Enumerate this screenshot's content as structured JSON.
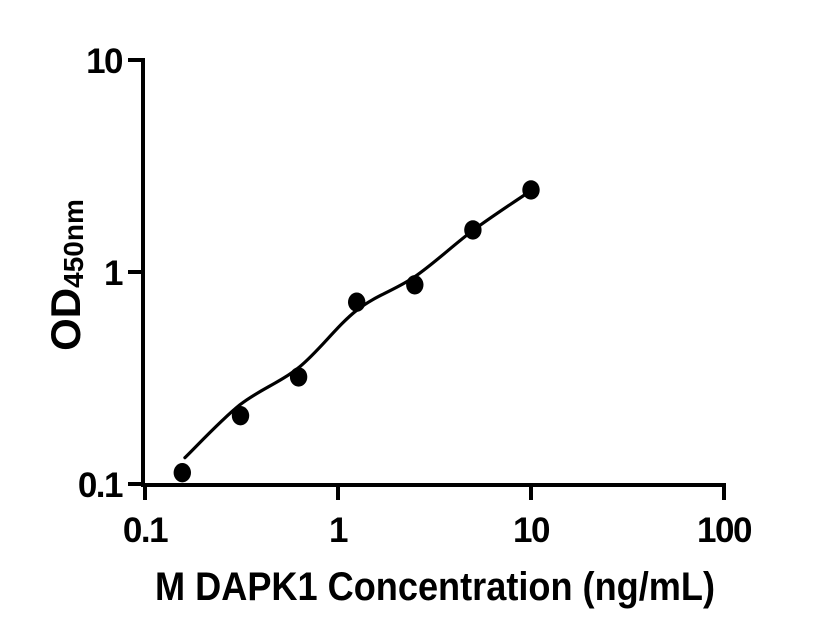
{
  "figure": {
    "background_color": "#ffffff",
    "ink_color": "#000000"
  },
  "chart_data": {
    "type": "scatter",
    "title": "",
    "xlabel": "M DAPK1 Concentration (ng/mL)",
    "ylabel": "OD450nm",
    "ylabel_main": "OD",
    "ylabel_sub": "450nm",
    "x_scale": "log10",
    "y_scale": "log10",
    "xlim": [
      0.1,
      100
    ],
    "ylim": [
      0.1,
      10
    ],
    "grid": false,
    "legend": "none",
    "x_ticks": [
      {
        "v": 0.1,
        "label": "0.1"
      },
      {
        "v": 1,
        "label": "1"
      },
      {
        "v": 10,
        "label": "10"
      },
      {
        "v": 100,
        "label": "100"
      }
    ],
    "y_ticks": [
      {
        "v": 0.1,
        "label": "0.1"
      },
      {
        "v": 1,
        "label": "1"
      },
      {
        "v": 10,
        "label": "10"
      }
    ],
    "series": [
      {
        "name": "standard-dilution-points",
        "type": "scatter",
        "marker": "filled-circle",
        "color": "#000000",
        "x": [
          0.156,
          0.3125,
          0.625,
          1.25,
          2.5,
          5,
          10
        ],
        "y": [
          0.113,
          0.21,
          0.32,
          0.72,
          0.87,
          1.58,
          2.44
        ]
      },
      {
        "name": "fitted-standard-curve",
        "type": "line",
        "color": "#000000",
        "x": [
          0.161,
          0.31,
          0.63,
          1.25,
          2.5,
          5.05,
          10.2
        ],
        "y": [
          0.133,
          0.236,
          0.356,
          0.66,
          0.95,
          1.58,
          2.45
        ]
      }
    ]
  }
}
